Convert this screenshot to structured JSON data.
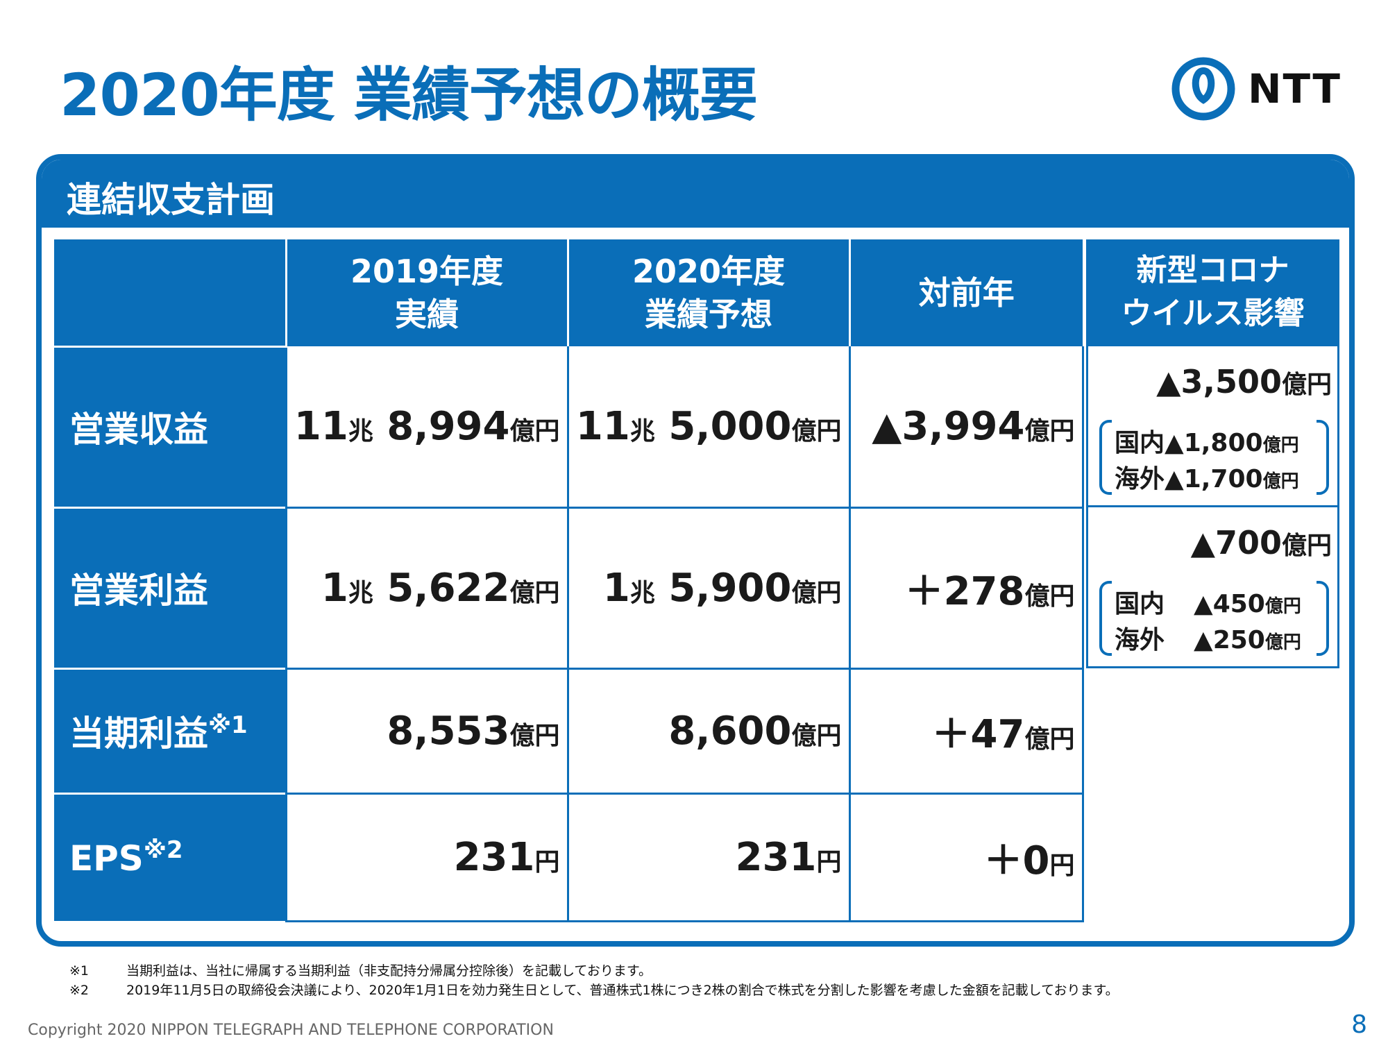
{
  "title": "2020年度 業績予想の概要",
  "logo": {
    "text": "NTT",
    "icon": "ntt-logo-icon"
  },
  "panel_title": "連結収支計画",
  "columns": [
    "",
    "2019年度\n実績",
    "2020年度\n業績予想",
    "対前年"
  ],
  "rows": [
    {
      "label": "営業収益",
      "note": "",
      "v2019": [
        "11",
        "兆",
        " 8,994",
        "億円"
      ],
      "v2020": [
        "11",
        "兆",
        " 5,000",
        "億円"
      ],
      "yoy": [
        "▲3,994",
        "億円"
      ]
    },
    {
      "label": "営業利益",
      "note": "",
      "v2019": [
        "1",
        "兆",
        " 5,622",
        "億円"
      ],
      "v2020": [
        "1",
        "兆",
        " 5,900",
        "億円"
      ],
      "yoy": [
        "＋278",
        "億円"
      ]
    },
    {
      "label": "当期利益",
      "note": "※1",
      "v2019": [
        "",
        "",
        "8,553",
        "億円"
      ],
      "v2020": [
        "",
        "",
        "8,600",
        "億円"
      ],
      "yoy": [
        "＋47",
        "億円"
      ]
    },
    {
      "label": "EPS",
      "note": "※2",
      "v2019": [
        "",
        "",
        "231",
        "円"
      ],
      "v2020": [
        "",
        "",
        "231",
        "円"
      ],
      "yoy": [
        "＋0",
        "円"
      ]
    }
  ],
  "covid": {
    "header": "新型コロナ\nウイルス影響",
    "revenue": {
      "total": "▲3,500",
      "total_unit": "億円",
      "domestic_label": "国内",
      "domestic": "▲1,800",
      "overseas_label": "海外",
      "overseas": "▲1,700",
      "unit": "億円"
    },
    "profit": {
      "total": "▲700",
      "total_unit": "億円",
      "domestic_label": "国内",
      "domestic": "▲450",
      "overseas_label": "海外",
      "overseas": "▲250",
      "unit": "億円"
    }
  },
  "notes": [
    {
      "mark": "※1",
      "text": "当期利益は、当社に帰属する当期利益（非支配持分帰属分控除後）を記載しております。"
    },
    {
      "mark": "※2",
      "text": "2019年11月5日の取締役会決議により、2020年1月1日を効力発生日として、普通株式1株につき2株の割合で株式を分割した影響を考慮した金額を記載しております。"
    }
  ],
  "copyright": "Copyright 2020 NIPPON TELEGRAPH AND TELEPHONE CORPORATION",
  "page_number": "8"
}
